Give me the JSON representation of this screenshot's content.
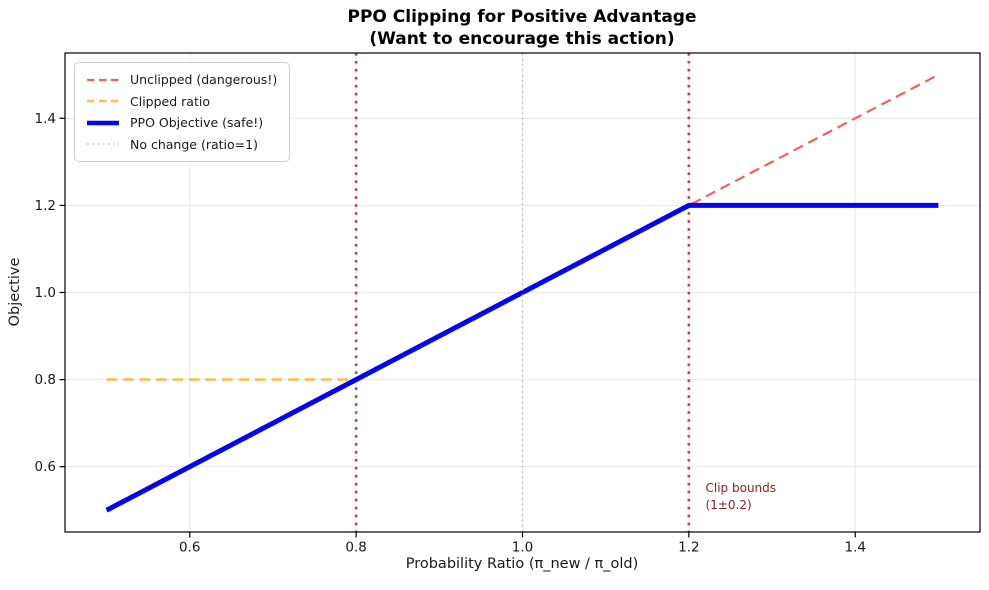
{
  "figure": {
    "background": "#ffffff"
  },
  "chart_data": {
    "type": "line",
    "title": "PPO Clipping for Positive Advantage",
    "subtitle": "(Want to encourage this action)",
    "xlabel": "Probability Ratio (π_new / π_old)",
    "ylabel": "Objective",
    "xlim": [
      0.45,
      1.55
    ],
    "ylim": [
      0.45,
      1.55
    ],
    "xticks": [
      0.6,
      0.8,
      1.0,
      1.2,
      1.4
    ],
    "yticks": [
      0.6,
      0.8,
      1.0,
      1.2,
      1.4
    ],
    "grid": true,
    "grid_color": "#e8e8e8",
    "spine_color": "#000000",
    "tick_label_color": "#1a1a1a",
    "legend_position": "upper-left",
    "vlines": [
      {
        "name": "clip-lower-bound-line",
        "x": 0.8,
        "color": "#a94c4c",
        "style": "dotted",
        "width": 2.6
      },
      {
        "name": "clip-upper-bound-line",
        "x": 1.2,
        "color": "#a94c4c",
        "style": "dotted",
        "width": 2.6
      }
    ],
    "series": [
      {
        "name": "Unclipped (dangerous!)",
        "color": "#f4605f",
        "style": "dashed",
        "width": 2.2,
        "points": [
          [
            0.5,
            0.5
          ],
          [
            1.5,
            1.5
          ]
        ]
      },
      {
        "name": "Clipped ratio",
        "color": "#ffbb55",
        "style": "dashed",
        "width": 2.6,
        "points": [
          [
            0.5,
            0.8
          ],
          [
            0.8,
            0.8
          ],
          [
            1.2,
            1.2
          ],
          [
            1.5,
            1.2
          ]
        ]
      },
      {
        "name": "PPO Objective (safe!)",
        "color": "#0504ec",
        "style": "solid",
        "width": 5,
        "points": [
          [
            0.5,
            0.5
          ],
          [
            1.2,
            1.2
          ],
          [
            1.5,
            1.2
          ]
        ]
      },
      {
        "name": "No change (ratio=1)",
        "color": "#c2c2c2",
        "style": "dotted",
        "width": 1.6,
        "points": [
          [
            1.0,
            0.45
          ],
          [
            1.0,
            1.55
          ]
        ]
      }
    ],
    "annotation": {
      "lines": [
        "Clip bounds",
        "(1±0.2)"
      ],
      "x": 1.22,
      "y": 0.565,
      "color": "#8b1f1f"
    }
  }
}
